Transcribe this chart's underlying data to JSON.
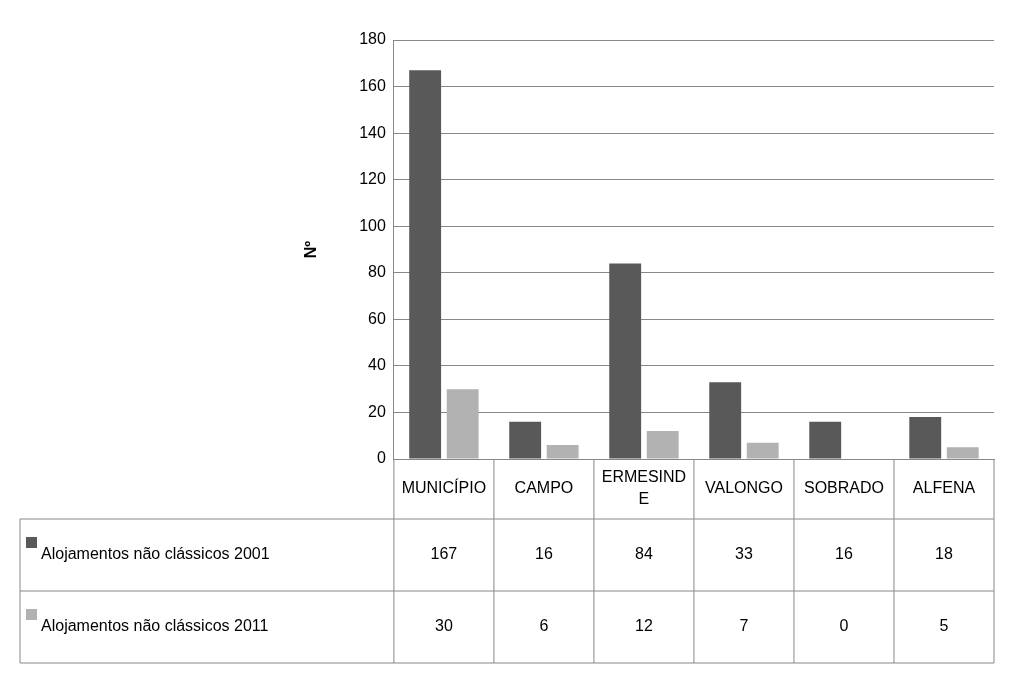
{
  "chart_data": {
    "type": "bar",
    "ylabel": "Nº",
    "categories": [
      "MUNICÍPIO",
      "CAMPO",
      "ERMESINDE",
      "VALONGO",
      "SOBRADO",
      "ALFENA"
    ],
    "series": [
      {
        "name": "Alojamentos não clássicos 2001",
        "color": "#595959",
        "values": [
          167,
          16,
          84,
          33,
          16,
          18
        ]
      },
      {
        "name": "Alojamentos não clássicos 2011",
        "color": "#b2b2b2",
        "values": [
          30,
          6,
          12,
          7,
          0,
          5
        ]
      }
    ],
    "ylim": [
      0,
      180
    ],
    "yticks": [
      0,
      20,
      40,
      60,
      80,
      100,
      120,
      140,
      160,
      180
    ],
    "grid": "y",
    "legend": "bottom",
    "data_labels": true
  }
}
